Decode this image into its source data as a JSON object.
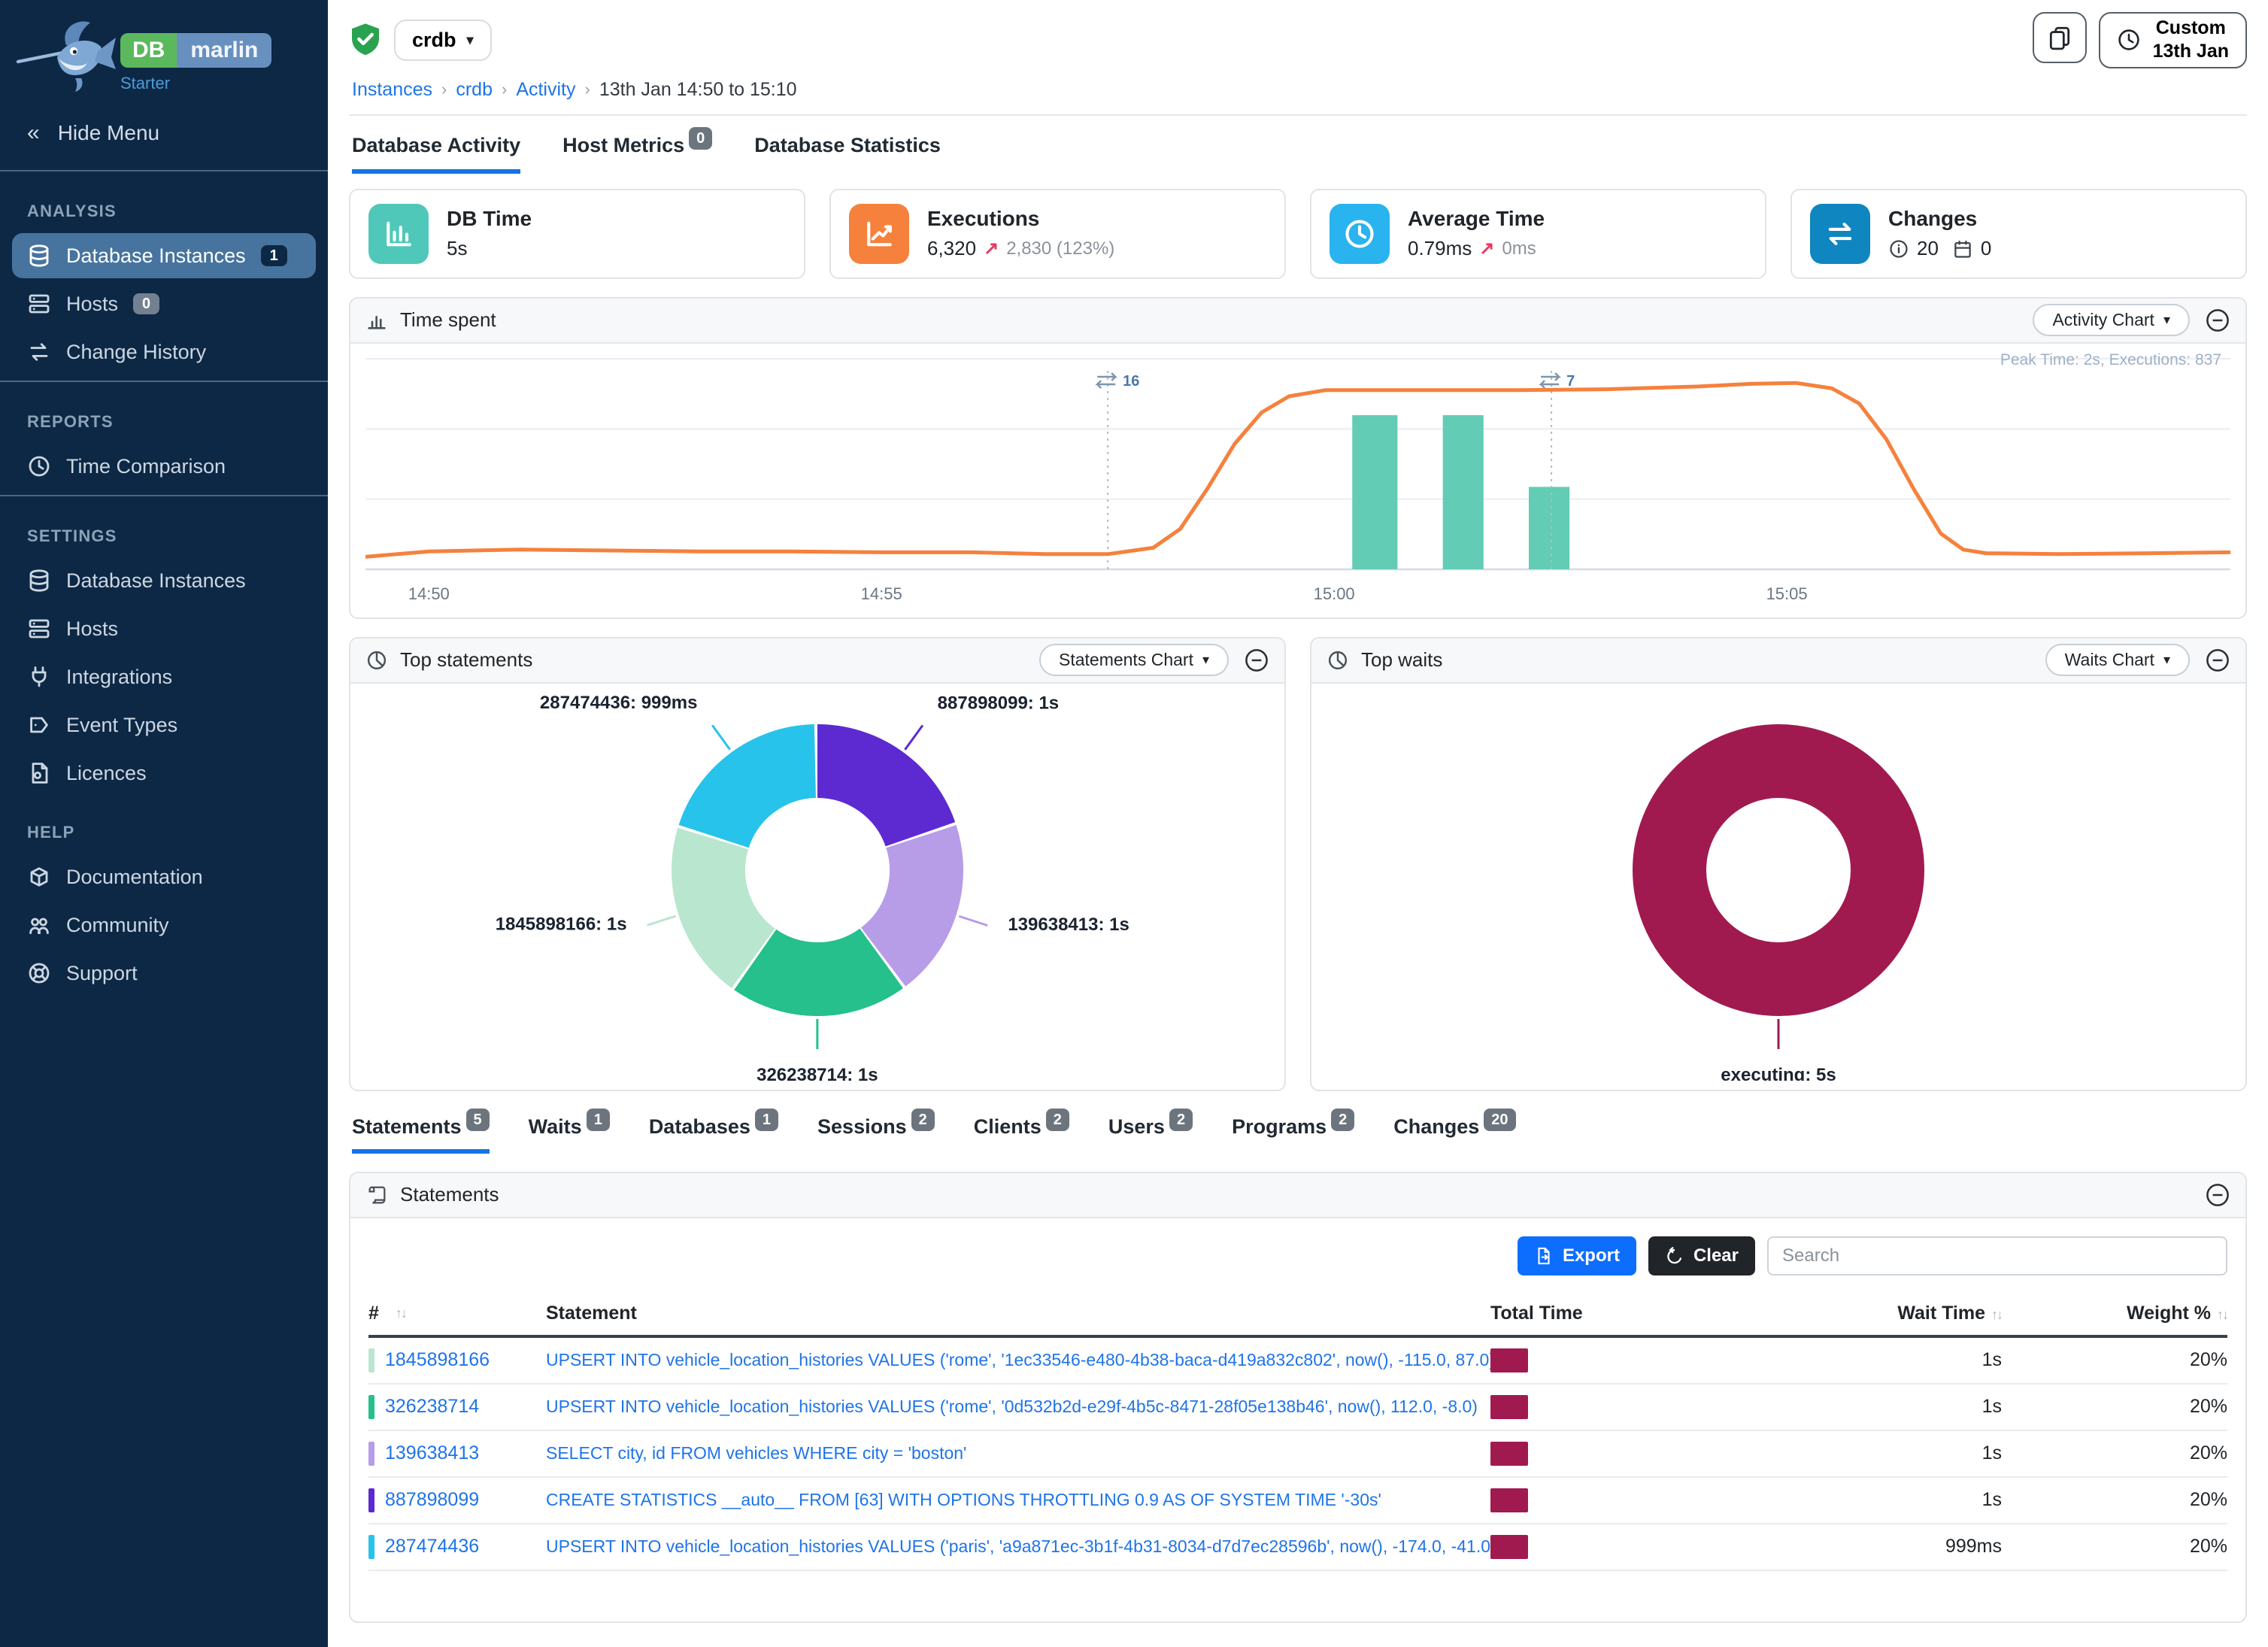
{
  "brand": {
    "db": "DB",
    "marlin": "marlin",
    "tier": "Starter"
  },
  "sidebar": {
    "hide_menu": "Hide Menu",
    "sections": [
      {
        "title": "ANALYSIS",
        "divider_after": true,
        "items": [
          {
            "label": "Database Instances",
            "icon": "database",
            "badge": "1",
            "badge_style": "dark",
            "active": true
          },
          {
            "label": "Hosts",
            "icon": "hosts",
            "badge": "0",
            "badge_style": "gray"
          },
          {
            "label": "Change History",
            "icon": "change"
          }
        ]
      },
      {
        "title": "REPORTS",
        "divider_after": true,
        "items": [
          {
            "label": "Time Comparison",
            "icon": "clock"
          }
        ]
      },
      {
        "title": "SETTINGS",
        "divider_after": false,
        "items": [
          {
            "label": "Database Instances",
            "icon": "database"
          },
          {
            "label": "Hosts",
            "icon": "hosts"
          },
          {
            "label": "Integrations",
            "icon": "plug"
          },
          {
            "label": "Event Types",
            "icon": "event"
          },
          {
            "label": "Licences",
            "icon": "licence"
          }
        ]
      },
      {
        "title": "HELP",
        "divider_after": false,
        "items": [
          {
            "label": "Documentation",
            "icon": "docs"
          },
          {
            "label": "Community",
            "icon": "community"
          },
          {
            "label": "Support",
            "icon": "support"
          }
        ]
      }
    ]
  },
  "header": {
    "instance": "crdb",
    "breadcrumb": [
      "Instances",
      "crdb",
      "Activity"
    ],
    "breadcrumb_date": "13th Jan 14:50 to 15:10",
    "time_button": {
      "line1": "Custom",
      "line2": "13th Jan"
    }
  },
  "page_tabs": [
    {
      "label": "Database Activity",
      "active": true
    },
    {
      "label": "Host Metrics",
      "badge": "0"
    },
    {
      "label": "Database Statistics"
    }
  ],
  "metric_cards": [
    {
      "title": "DB Time",
      "value": "5s",
      "icon": "bar-chart",
      "color": "#4fc8b9"
    },
    {
      "title": "Executions",
      "value": "6,320",
      "delta_arrow": "↗",
      "delta": "2,830 (123%)",
      "icon": "line-chart",
      "color": "#f5813d"
    },
    {
      "title": "Average Time",
      "value": "0.79ms",
      "delta_arrow": "↗",
      "delta": "0ms",
      "icon": "clock",
      "color": "#29b3ef"
    },
    {
      "title": "Changes",
      "value_info": "20",
      "value_calendar": "0",
      "icon": "changes",
      "color": "#0f86c0"
    }
  ],
  "time_spent_panel": {
    "title": "Time spent",
    "chart_button": "Activity Chart",
    "peak_note": "Peak Time: 2s, Executions: 837"
  },
  "top_statements_panel": {
    "title": "Top statements",
    "chart_button": "Statements Chart"
  },
  "top_waits_panel": {
    "title": "Top waits",
    "chart_button": "Waits Chart"
  },
  "detail_tabs": [
    {
      "label": "Statements",
      "badge": "5",
      "active": true
    },
    {
      "label": "Waits",
      "badge": "1"
    },
    {
      "label": "Databases",
      "badge": "1"
    },
    {
      "label": "Sessions",
      "badge": "2"
    },
    {
      "label": "Clients",
      "badge": "2"
    },
    {
      "label": "Users",
      "badge": "2"
    },
    {
      "label": "Programs",
      "badge": "2"
    },
    {
      "label": "Changes",
      "badge": "20"
    }
  ],
  "statements_panel": {
    "title": "Statements",
    "export_label": "Export",
    "clear_label": "Clear",
    "search_placeholder": "Search"
  },
  "table": {
    "columns": [
      {
        "label": "#",
        "sortable": true
      },
      {
        "label": "Statement",
        "sortable": false
      },
      {
        "label": "Total Time",
        "sortable": false
      },
      {
        "label": "Wait Time",
        "sortable": true
      },
      {
        "label": "Weight %",
        "sortable": true
      }
    ],
    "rows": [
      {
        "id": "1845898166",
        "color": "#b9e6ce",
        "statement": "UPSERT INTO vehicle_location_histories VALUES ('rome', '1ec33546-e480-4b38-baca-d419a832c802', now(), -115.0, 87.0)",
        "wait_time": "1s",
        "weight": "20%"
      },
      {
        "id": "326238714",
        "color": "#25c08c",
        "statement": "UPSERT INTO vehicle_location_histories VALUES ('rome', '0d532b2d-e29f-4b5c-8471-28f05e138b46', now(), 112.0, -8.0)",
        "wait_time": "1s",
        "weight": "20%"
      },
      {
        "id": "139638413",
        "color": "#b79ce8",
        "statement": "SELECT city, id FROM vehicles WHERE city = 'boston'",
        "wait_time": "1s",
        "weight": "20%"
      },
      {
        "id": "887898099",
        "color": "#5d2ad1",
        "statement": "CREATE STATISTICS __auto__ FROM [63] WITH OPTIONS THROTTLING 0.9 AS OF SYSTEM TIME '-30s'",
        "wait_time": "1s",
        "weight": "20%"
      },
      {
        "id": "287474436",
        "color": "#28c3ea",
        "statement": "UPSERT INTO vehicle_location_histories VALUES ('paris', 'a9a871ec-3b1f-4b31-8034-d7d7ec28596b', now(), -174.0, -41.0)",
        "wait_time": "999ms",
        "weight": "20%"
      }
    ],
    "total_time_bar_color": "#a01a50"
  },
  "chart_data": [
    {
      "name": "time_spent",
      "type": "line",
      "title": "Time spent",
      "x_ticks": [
        "14:50",
        "14:55",
        "15:00",
        "15:05"
      ],
      "tick_minutes": [
        2,
        7,
        12,
        17
      ],
      "x_domain_minutes": [
        1.3,
        21.9
      ],
      "y_max_seconds": 2.35,
      "grid": true,
      "note": "Peak Time: 2s, Executions: 837",
      "line_color": "#f5813d",
      "line_points": [
        [
          1.3,
          0.14
        ],
        [
          2,
          0.2
        ],
        [
          3,
          0.22
        ],
        [
          4,
          0.21
        ],
        [
          5,
          0.2
        ],
        [
          6,
          0.2
        ],
        [
          7,
          0.19
        ],
        [
          8,
          0.19
        ],
        [
          8.8,
          0.17
        ],
        [
          9.5,
          0.17
        ],
        [
          10,
          0.24
        ],
        [
          10.3,
          0.45
        ],
        [
          10.6,
          0.9
        ],
        [
          10.9,
          1.4
        ],
        [
          11.2,
          1.75
        ],
        [
          11.5,
          1.93
        ],
        [
          11.9,
          2.0
        ],
        [
          13,
          2.0
        ],
        [
          14,
          2.0
        ],
        [
          15,
          2.01
        ],
        [
          16,
          2.04
        ],
        [
          16.6,
          2.07
        ],
        [
          17.1,
          2.08
        ],
        [
          17.5,
          2.02
        ],
        [
          17.8,
          1.85
        ],
        [
          18.1,
          1.45
        ],
        [
          18.4,
          0.9
        ],
        [
          18.7,
          0.4
        ],
        [
          18.95,
          0.22
        ],
        [
          19.2,
          0.18
        ],
        [
          20,
          0.17
        ],
        [
          21,
          0.18
        ],
        [
          21.9,
          0.19
        ]
      ],
      "bars_color": "#63ccb5",
      "bars": [
        {
          "t_start": 12.2,
          "t_end": 12.7,
          "value_s": 1.72
        },
        {
          "t_start": 13.2,
          "t_end": 13.65,
          "value_s": 1.72
        },
        {
          "t_start": 14.15,
          "t_end": 14.6,
          "value_s": 0.92
        }
      ],
      "change_annotations": [
        {
          "t": 9.5,
          "label": "16"
        },
        {
          "t": 14.4,
          "label": "7"
        }
      ]
    },
    {
      "name": "top_statements",
      "type": "pie",
      "donut": true,
      "segments": [
        {
          "label": "887898099: 1s",
          "value": 1,
          "color": "#5d2ad1"
        },
        {
          "label": "139638413: 1s",
          "value": 1,
          "color": "#b79ce8"
        },
        {
          "label": "326238714: 1s",
          "value": 1,
          "color": "#25c08c"
        },
        {
          "label": "1845898166: 1s",
          "value": 1,
          "color": "#b9e6ce"
        },
        {
          "label": "287474436: 999ms",
          "value": 0.999,
          "color": "#28c3ea"
        }
      ]
    },
    {
      "name": "top_waits",
      "type": "pie",
      "donut": true,
      "segments": [
        {
          "label": "executing: 5s",
          "value": 5,
          "color": "#a01a50"
        }
      ]
    }
  ]
}
